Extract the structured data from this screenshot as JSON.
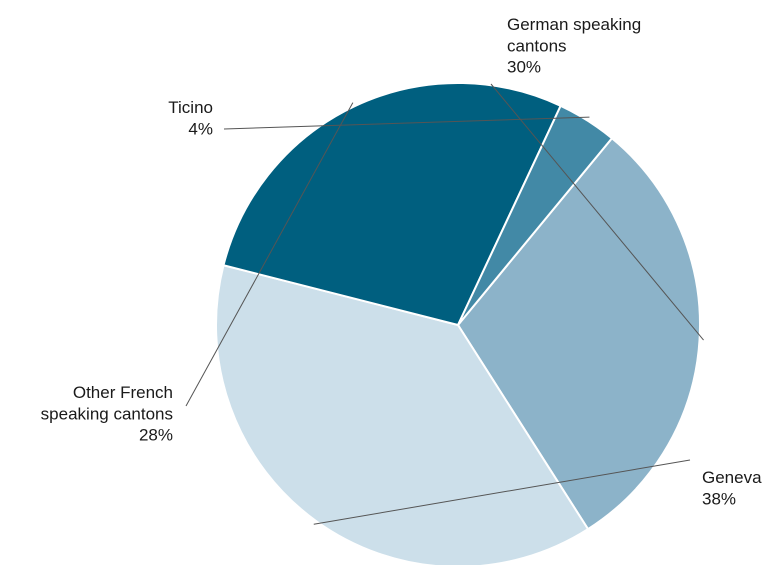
{
  "chart_data": {
    "type": "pie",
    "title": "",
    "slices": [
      {
        "label_lines": [
          "German speaking",
          "cantons"
        ],
        "value": 30,
        "value_label": "30%",
        "color": "#8cb3c9"
      },
      {
        "label_lines": [
          "Geneva"
        ],
        "value": 38,
        "value_label": "38%",
        "color": "#ccdfea"
      },
      {
        "label_lines": [
          "Other French",
          "speaking cantons"
        ],
        "value": 28,
        "value_label": "28%",
        "color": "#005f7f"
      },
      {
        "label_lines": [
          "Ticino"
        ],
        "value": 4,
        "value_label": "4%",
        "color": "#4289a6"
      }
    ]
  }
}
